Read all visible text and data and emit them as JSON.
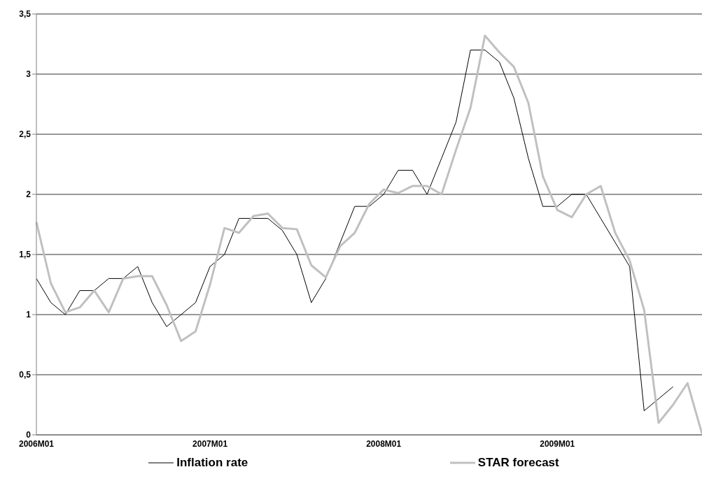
{
  "chart_data": {
    "type": "line",
    "categories": [
      "2006M01",
      null,
      null,
      null,
      null,
      null,
      null,
      null,
      null,
      null,
      null,
      null,
      "2007M01",
      null,
      null,
      null,
      null,
      null,
      null,
      null,
      null,
      null,
      null,
      null,
      "2008M01",
      null,
      null,
      null,
      null,
      null,
      null,
      null,
      null,
      null,
      null,
      null,
      "2009M01",
      null,
      null,
      null,
      null,
      null,
      null,
      null,
      null,
      null,
      null
    ],
    "series": [
      {
        "name": "Inflation rate",
        "color": "#000000",
        "values": [
          1.3,
          1.1,
          1.0,
          1.2,
          1.2,
          1.3,
          1.3,
          1.4,
          1.1,
          0.9,
          1.0,
          1.1,
          1.4,
          1.5,
          1.8,
          1.8,
          1.8,
          1.7,
          1.5,
          1.1,
          1.3,
          1.6,
          1.9,
          1.9,
          2.0,
          2.2,
          2.2,
          2.0,
          2.3,
          2.6,
          3.2,
          3.2,
          3.1,
          2.8,
          2.3,
          1.9,
          1.9,
          2.0,
          2.0,
          1.8,
          1.6,
          1.4,
          0.2,
          0.3,
          0.4,
          null,
          null
        ]
      },
      {
        "name": "STAR forecast",
        "color": "#c0c0c0",
        "values": [
          1.77,
          1.26,
          1.02,
          1.06,
          1.2,
          1.02,
          1.3,
          1.32,
          1.32,
          1.08,
          0.78,
          0.86,
          1.25,
          1.72,
          1.68,
          1.82,
          1.84,
          1.72,
          1.71,
          1.41,
          1.31,
          1.57,
          1.68,
          1.92,
          2.04,
          2.01,
          2.07,
          2.07,
          2.0,
          2.37,
          2.72,
          3.32,
          3.18,
          3.06,
          2.76,
          2.15,
          1.87,
          1.81,
          2.0,
          2.07,
          1.68,
          1.45,
          1.04,
          0.1,
          0.25,
          0.43,
          0.01
        ]
      }
    ],
    "ylim": [
      0,
      3.5
    ],
    "yticks": [
      0,
      {
        "value": 0.5,
        "label": "0,5"
      },
      1,
      {
        "value": 1.5,
        "label": "1,5"
      },
      2,
      {
        "value": 2.5,
        "label": "2,5"
      },
      3,
      {
        "value": 3.5,
        "label": "3,5"
      }
    ],
    "grid": "y",
    "legend": "bottom",
    "marker": "none",
    "line_style": "solid"
  }
}
